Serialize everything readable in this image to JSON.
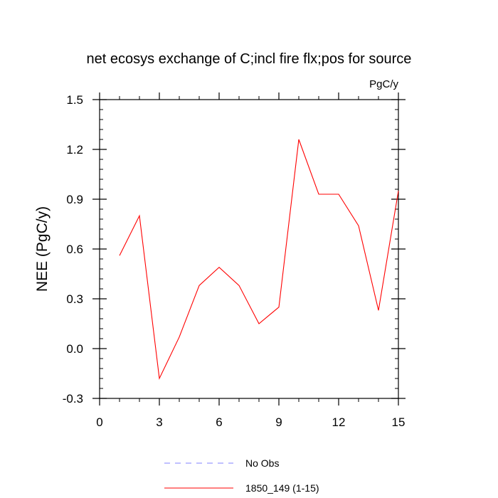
{
  "chart_data": {
    "type": "line",
    "title": "net ecosys exchange of C;incl fire flx;pos for source",
    "units_label": "PgC/y",
    "xlabel": "",
    "ylabel": "NEE  (PgC/y)",
    "xlim": [
      0,
      15
    ],
    "ylim": [
      -0.3,
      1.5
    ],
    "x_ticks": [
      0,
      3,
      6,
      9,
      12,
      15
    ],
    "x_tick_labels": [
      "0",
      "3",
      "6",
      "9",
      "12",
      "15"
    ],
    "y_ticks": [
      -0.3,
      0.0,
      0.3,
      0.6,
      0.9,
      1.2,
      1.5
    ],
    "y_tick_labels": [
      "-0.3",
      "0.0",
      "0.3",
      "0.6",
      "0.9",
      "1.2",
      "1.5"
    ],
    "grid": false,
    "legend_position": "bottom",
    "series": [
      {
        "name": "1850_149 (1-15)",
        "color": "#ff0000",
        "style": "solid",
        "x": [
          1,
          2,
          3,
          4,
          5,
          6,
          7,
          8,
          9,
          10,
          11,
          12,
          13,
          14,
          15
        ],
        "y": [
          0.56,
          0.8,
          -0.18,
          0.07,
          0.38,
          0.49,
          0.38,
          0.15,
          0.25,
          1.26,
          0.93,
          0.93,
          0.74,
          0.23,
          0.95
        ]
      }
    ],
    "legend": [
      {
        "label": "No Obs",
        "color": "#8080ff",
        "style": "dashed"
      },
      {
        "label": "1850_149 (1-15)",
        "color": "#ff0000",
        "style": "solid"
      }
    ]
  }
}
